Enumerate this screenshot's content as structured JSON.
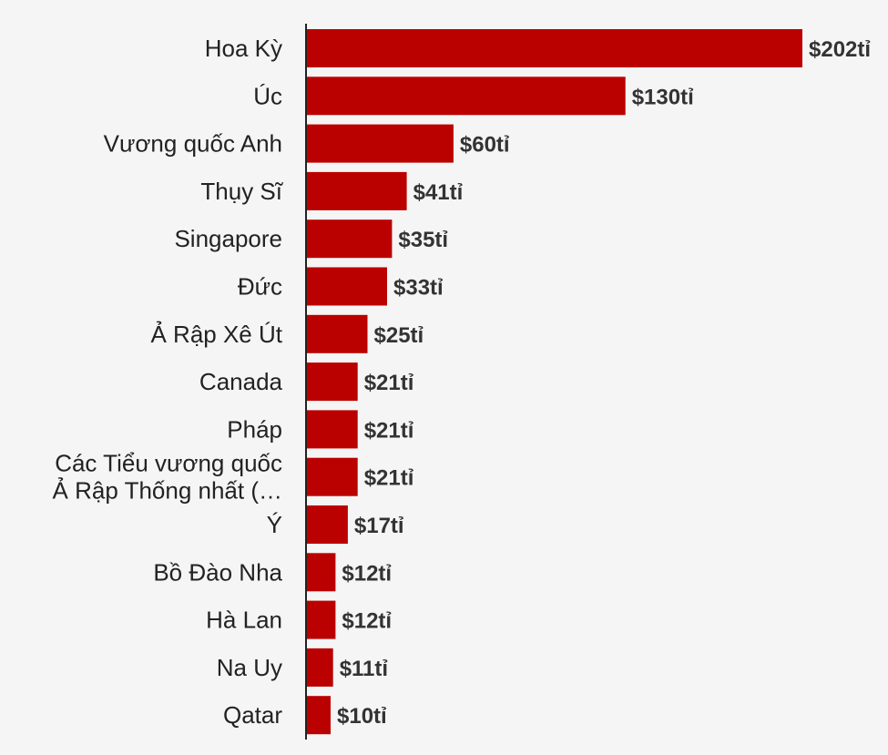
{
  "chart_data": {
    "type": "bar",
    "orientation": "horizontal",
    "categories": [
      "Hoa Kỳ",
      "Úc",
      "Vương quốc Anh",
      "Thụy Sĩ",
      "Singapore",
      "Đức",
      "Ả Rập Xê Út",
      "Canada",
      "Pháp",
      "Các Tiểu vương quốc Ả Rập Thống nhất (…",
      "Ý",
      "Bồ Đào Nha",
      "Hà Lan",
      "Na Uy",
      "Qatar"
    ],
    "category_lines": [
      [
        "Hoa Kỳ"
      ],
      [
        "Úc"
      ],
      [
        "Vương quốc Anh"
      ],
      [
        "Thụy Sĩ"
      ],
      [
        "Singapore"
      ],
      [
        "Đức"
      ],
      [
        "Ả Rập Xê Út"
      ],
      [
        "Canada"
      ],
      [
        "Pháp"
      ],
      [
        "Các Tiểu vương quốc",
        "Ả Rập Thống nhất (…"
      ],
      [
        "Ý"
      ],
      [
        "Bồ Đào Nha"
      ],
      [
        "Hà Lan"
      ],
      [
        "Na Uy"
      ],
      [
        "Qatar"
      ]
    ],
    "values": [
      202,
      130,
      60,
      41,
      35,
      33,
      25,
      21,
      21,
      21,
      17,
      12,
      12,
      11,
      10
    ],
    "value_labels": [
      "$202tỉ",
      "$130tỉ",
      "$60tỉ",
      "$41tỉ",
      "$35tỉ",
      "$33tỉ",
      "$25tỉ",
      "$21tỉ",
      "$21tỉ",
      "$21tỉ",
      "$17tỉ",
      "$12tỉ",
      "$12tỉ",
      "$11tỉ",
      "$10tỉ"
    ],
    "title": "",
    "xlabel": "",
    "ylabel": "",
    "xlim": [
      0,
      202
    ],
    "grid": false,
    "legend": "none",
    "bar_color": "#bb0000",
    "axis_color": "#222222",
    "background": "#f5f5f5"
  }
}
